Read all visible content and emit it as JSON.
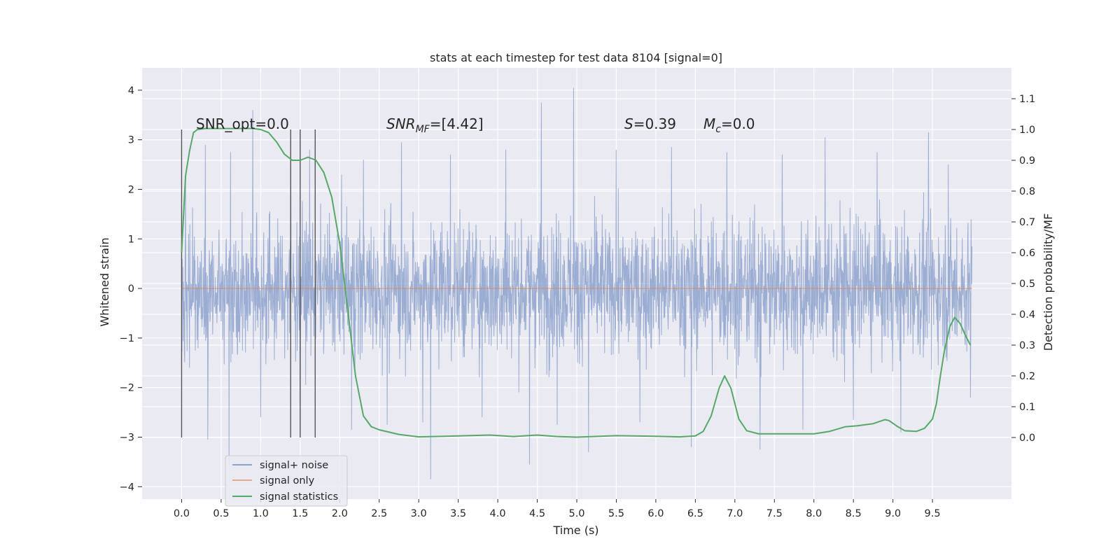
{
  "figure": {
    "background": "#ffffff",
    "axes_background": "#eaeaf2",
    "grid_color": "#ffffff"
  },
  "chart_data": {
    "type": "line",
    "title": "stats at each timestep for test data 8104 [signal=0]",
    "xlabel": "Time (s)",
    "ylabel": "Whitened strain",
    "y2label": "Detection probability/MF",
    "xlim": [
      -0.5,
      10.5
    ],
    "ylim": [
      -4.25,
      4.45
    ],
    "y2lim": [
      -0.2,
      1.2
    ],
    "xticks": [
      "0.0",
      "0.5",
      "1.0",
      "1.5",
      "2.0",
      "2.5",
      "3.0",
      "3.5",
      "4.0",
      "4.5",
      "5.0",
      "5.5",
      "6.0",
      "6.5",
      "7.0",
      "7.5",
      "8.0",
      "8.5",
      "9.0",
      "9.5"
    ],
    "yticks": [
      "4",
      "3",
      "2",
      "1",
      "0",
      "−1",
      "−2",
      "−3",
      "−4"
    ],
    "y2ticks": [
      "1.1",
      "1.0",
      "0.9",
      "0.8",
      "0.7",
      "0.6",
      "0.5",
      "0.4",
      "0.3",
      "0.2",
      "0.1",
      "0.0"
    ],
    "grid": true,
    "legend_position": "bottom-left",
    "annotations": {
      "snr_opt": "SNR_opt=0.0",
      "snr_mf_main": "SNR",
      "snr_mf_sub": "MF",
      "snr_mf_value": "=[4.42]",
      "s_main": "S",
      "s_value": "=0.39",
      "mc_main": "M",
      "mc_sub": "c",
      "mc_value": "=0.0"
    },
    "vertical_markers": [
      0.0,
      1.38,
      1.5,
      1.69
    ],
    "series": [
      {
        "name": "signal+ noise",
        "color": "#8da2cc",
        "t_range": [
          0.0,
          10.0
        ],
        "typical_band": [
          -1.3,
          1.3
        ],
        "spikes": [
          {
            "t": 0.05,
            "y": 2.3
          },
          {
            "t": 0.1,
            "y": -1.6
          },
          {
            "t": 0.3,
            "y": 2.9
          },
          {
            "t": 0.33,
            "y": -3.05
          },
          {
            "t": 0.6,
            "y": -3.55
          },
          {
            "t": 0.62,
            "y": 2.75
          },
          {
            "t": 0.9,
            "y": 3.6
          },
          {
            "t": 1.0,
            "y": -2.6
          },
          {
            "t": 1.38,
            "y": 2.5
          },
          {
            "t": 1.5,
            "y": -2.9
          },
          {
            "t": 1.62,
            "y": 2.8
          },
          {
            "t": 2.15,
            "y": -2.85
          },
          {
            "t": 2.3,
            "y": 2.6
          },
          {
            "t": 2.6,
            "y": -2.75
          },
          {
            "t": 2.78,
            "y": 2.95
          },
          {
            "t": 3.05,
            "y": -2.7
          },
          {
            "t": 3.15,
            "y": -3.85
          },
          {
            "t": 3.4,
            "y": 2.7
          },
          {
            "t": 3.8,
            "y": -2.6
          },
          {
            "t": 4.1,
            "y": 2.8
          },
          {
            "t": 4.4,
            "y": -3.55
          },
          {
            "t": 4.55,
            "y": 3.75
          },
          {
            "t": 4.75,
            "y": -2.75
          },
          {
            "t": 4.96,
            "y": 4.05
          },
          {
            "t": 5.15,
            "y": -3.3
          },
          {
            "t": 5.5,
            "y": 2.8
          },
          {
            "t": 5.8,
            "y": -2.7
          },
          {
            "t": 6.2,
            "y": 2.85
          },
          {
            "t": 6.45,
            "y": -3.2
          },
          {
            "t": 6.9,
            "y": 2.75
          },
          {
            "t": 7.32,
            "y": -3.25
          },
          {
            "t": 7.6,
            "y": 2.7
          },
          {
            "t": 7.86,
            "y": -2.85
          },
          {
            "t": 8.14,
            "y": 3.05
          },
          {
            "t": 8.5,
            "y": -2.65
          },
          {
            "t": 8.8,
            "y": 2.75
          },
          {
            "t": 9.1,
            "y": -2.9
          },
          {
            "t": 9.45,
            "y": 3.15
          },
          {
            "t": 9.7,
            "y": 2.5
          },
          {
            "t": 9.98,
            "y": -2.2
          }
        ]
      },
      {
        "name": "signal only",
        "color": "#dd8452",
        "t": [
          0.0,
          10.0
        ],
        "y": [
          0.0,
          0.0
        ]
      },
      {
        "name": "signal statistics",
        "color": "#55a868",
        "axis": "right",
        "t": [
          0.0,
          0.05,
          0.1,
          0.15,
          0.2,
          0.3,
          0.5,
          0.7,
          0.9,
          1.0,
          1.1,
          1.2,
          1.3,
          1.4,
          1.5,
          1.6,
          1.7,
          1.8,
          1.9,
          2.0,
          2.1,
          2.2,
          2.3,
          2.4,
          2.5,
          2.75,
          3.0,
          3.5,
          3.9,
          4.2,
          4.5,
          4.75,
          5.0,
          5.5,
          6.0,
          6.3,
          6.5,
          6.6,
          6.7,
          6.8,
          6.87,
          6.95,
          7.05,
          7.15,
          7.3,
          7.5,
          7.8,
          8.0,
          8.2,
          8.4,
          8.55,
          8.75,
          8.9,
          8.95,
          9.05,
          9.15,
          9.3,
          9.4,
          9.5,
          9.55,
          9.6,
          9.65,
          9.72,
          9.78,
          9.85,
          9.92,
          9.98
        ],
        "y": [
          0.6,
          0.85,
          0.93,
          0.99,
          1.0,
          1.003,
          1.003,
          1.003,
          1.003,
          1.0,
          0.99,
          0.96,
          0.92,
          0.9,
          0.9,
          0.91,
          0.9,
          0.86,
          0.78,
          0.63,
          0.42,
          0.2,
          0.07,
          0.035,
          0.025,
          0.01,
          0.002,
          0.005,
          0.008,
          0.003,
          0.008,
          0.003,
          0.001,
          0.006,
          0.004,
          0.002,
          0.005,
          0.02,
          0.07,
          0.16,
          0.2,
          0.16,
          0.06,
          0.022,
          0.012,
          0.012,
          0.012,
          0.012,
          0.02,
          0.035,
          0.038,
          0.045,
          0.058,
          0.055,
          0.037,
          0.022,
          0.02,
          0.03,
          0.06,
          0.11,
          0.2,
          0.28,
          0.36,
          0.39,
          0.37,
          0.33,
          0.3
        ]
      }
    ]
  }
}
